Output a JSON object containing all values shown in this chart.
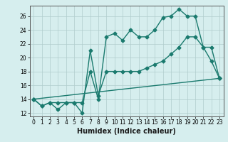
{
  "line1_x": [
    0,
    1,
    2,
    3,
    4,
    5,
    6,
    7,
    8,
    9,
    10,
    11,
    12,
    13,
    14,
    15,
    16,
    17,
    18,
    19,
    20,
    21,
    22,
    23
  ],
  "line1_y": [
    14.0,
    13.0,
    13.5,
    13.5,
    13.5,
    13.5,
    13.5,
    18.0,
    14.0,
    23.0,
    23.5,
    22.5,
    24.0,
    23.0,
    23.0,
    24.0,
    25.8,
    26.0,
    27.0,
    26.0,
    26.0,
    21.5,
    19.5,
    17.0
  ],
  "line2_x": [
    0,
    1,
    2,
    3,
    4,
    5,
    6,
    7,
    8,
    9,
    10,
    11,
    12,
    13,
    14,
    15,
    16,
    17,
    18,
    19,
    20,
    21,
    22,
    23
  ],
  "line2_y": [
    14.0,
    13.0,
    13.5,
    12.5,
    13.5,
    13.5,
    12.0,
    21.0,
    14.5,
    18.0,
    18.0,
    18.0,
    18.0,
    18.0,
    18.5,
    19.0,
    19.5,
    20.5,
    21.5,
    23.0,
    23.0,
    21.5,
    21.5,
    17.0
  ],
  "line3_x": [
    0,
    23
  ],
  "line3_y": [
    14.0,
    17.0
  ],
  "color": "#1a7a6e",
  "bg_color": "#d6eeee",
  "grid_color": "#b0cccc",
  "xlabel": "Humidex (Indice chaleur)",
  "xlim": [
    -0.5,
    23.5
  ],
  "ylim": [
    11.5,
    27.5
  ],
  "yticks": [
    12,
    14,
    16,
    18,
    20,
    22,
    24,
    26
  ],
  "xticks": [
    0,
    1,
    2,
    3,
    4,
    5,
    6,
    7,
    8,
    9,
    10,
    11,
    12,
    13,
    14,
    15,
    16,
    17,
    18,
    19,
    20,
    21,
    22,
    23
  ],
  "xticklabels": [
    "0",
    "1",
    "2",
    "3",
    "4",
    "5",
    "6",
    "7",
    "8",
    "9",
    "10",
    "11",
    "12",
    "13",
    "14",
    "15",
    "16",
    "17",
    "18",
    "19",
    "20",
    "21",
    "22",
    "23"
  ],
  "marker": "D",
  "markersize": 2.5,
  "linewidth": 1.0,
  "fontsize_label": 7,
  "fontsize_tick": 5.5
}
